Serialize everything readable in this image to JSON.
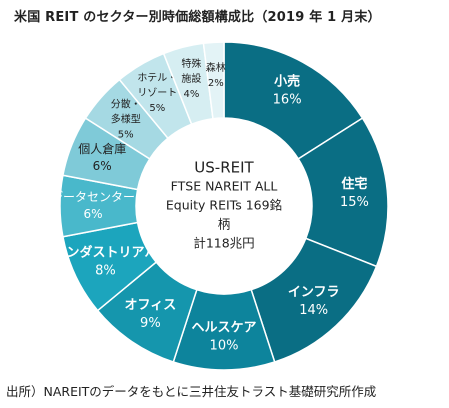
{
  "title": "米国 REIT のセクター別時価総額構成比（2019 年 1 月末）",
  "source": "出所）NAREITのデータをもとに三井住友トラスト基礎研究所作成",
  "center": {
    "lines": [
      "US-REIT",
      "FTSE NAREIT ALL",
      "Equity REITs 169銘",
      "柄",
      "計118兆円"
    ]
  },
  "chart_data": {
    "type": "pie",
    "style": "donut",
    "unit": "%",
    "categories": [
      "小売",
      "住宅",
      "インフラ",
      "ヘルスケア",
      "オフィス",
      "インダストリアル",
      "データセンター",
      "個人倉庫",
      "分散・多様型",
      "ホテル・リゾート",
      "特殊施設",
      "森林"
    ],
    "label_lines": [
      [
        "小売"
      ],
      [
        "住宅"
      ],
      [
        "インフラ"
      ],
      [
        "ヘルスケア"
      ],
      [
        "オフィス"
      ],
      [
        "インダストリアル"
      ],
      [
        "データセンター"
      ],
      [
        "個人倉庫"
      ],
      [
        "分散・",
        "多様型"
      ],
      [
        "ホテル・",
        "リゾート"
      ],
      [
        "特殊",
        "施設"
      ],
      [
        "森林"
      ]
    ],
    "values": [
      16,
      15,
      14,
      10,
      9,
      8,
      6,
      6,
      5,
      5,
      4,
      2
    ],
    "value_labels": [
      "16%",
      "15%",
      "14%",
      "10%",
      "9%",
      "8%",
      "6%",
      "6%",
      "5%",
      "5%",
      "4%",
      "2%"
    ],
    "colors": [
      "#0a6e84",
      "#0a6e84",
      "#0a6e84",
      "#0d849c",
      "#1596ad",
      "#1ca5bd",
      "#49b8cb",
      "#7fcad8",
      "#a5d9e3",
      "#c1e5ec",
      "#d6eef2",
      "#e3f3f6"
    ],
    "label_colors": [
      "#ffffff",
      "#ffffff",
      "#ffffff",
      "#ffffff",
      "#ffffff",
      "#ffffff",
      "#ffffff",
      "#222222",
      "#222222",
      "#222222",
      "#222222",
      "#222222"
    ]
  }
}
